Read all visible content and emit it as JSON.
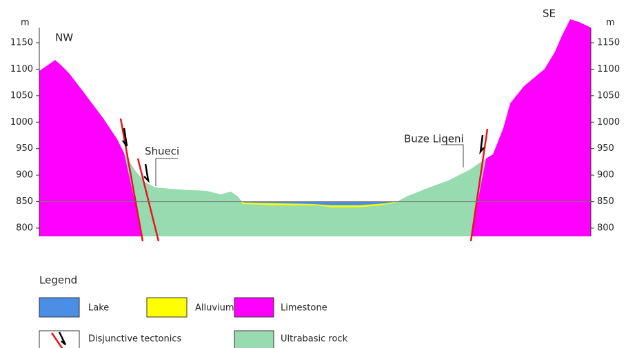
{
  "axis": {
    "unit": "m",
    "ticks": [
      1150,
      1100,
      1050,
      1000,
      950,
      900,
      850,
      800
    ]
  },
  "labels": {
    "nw": "NW",
    "se": "SE",
    "shueci": "Shueci",
    "buze_liqeni": "Buze Liqeni"
  },
  "legend": {
    "title": "Legend",
    "items": [
      {
        "label": "Lake"
      },
      {
        "label": "Alluvium"
      },
      {
        "label": "Limestone"
      },
      {
        "label": "Disjunctive tectonics"
      },
      {
        "label": "Ultrabasic rock"
      }
    ]
  }
}
